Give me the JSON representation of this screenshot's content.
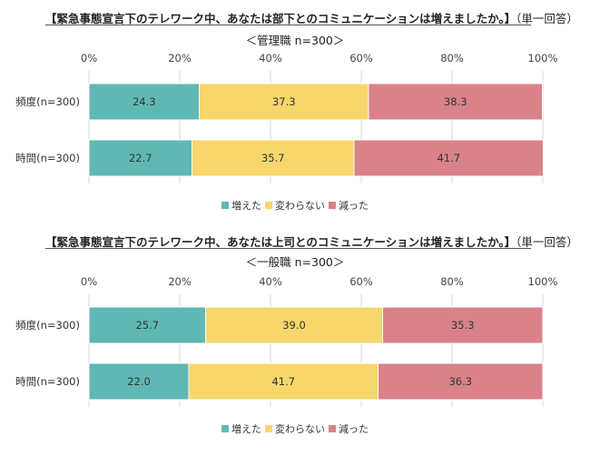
{
  "colors": {
    "increased": "#5fb8b3",
    "unchanged": "#f7d76b",
    "decreased": "#d98289"
  },
  "chart_data": [
    {
      "type": "bar",
      "orientation": "horizontal-stacked",
      "title": "【緊急事態宣言下のテレワーク中、あなたは部下とのコミュニケーションは増えましたか。】",
      "title_note": "（単一回答）",
      "subtitle": "＜管理職 n=300＞",
      "xlim": [
        0,
        100
      ],
      "ticks": [
        "0%",
        "20%",
        "40%",
        "60%",
        "80%",
        "100%"
      ],
      "categories": [
        "頻度(n=300)",
        "時間(n=300)"
      ],
      "series": [
        {
          "name": "増えた",
          "values": [
            24.3,
            22.7
          ]
        },
        {
          "name": "変わらない",
          "values": [
            37.3,
            35.7
          ]
        },
        {
          "name": "減った",
          "values": [
            38.3,
            41.7
          ]
        }
      ],
      "value_labels": [
        [
          "24.3",
          "37.3",
          "38.3"
        ],
        [
          "22.7",
          "35.7",
          "41.7"
        ]
      ],
      "legend": "bottom"
    },
    {
      "type": "bar",
      "orientation": "horizontal-stacked",
      "title": "【緊急事態宣言下のテレワーク中、あなたは上司とのコミュニケーションは増えましたか。】",
      "title_note": "（単一回答）",
      "subtitle": "＜一般職 n=300＞",
      "xlim": [
        0,
        100
      ],
      "ticks": [
        "0%",
        "20%",
        "40%",
        "60%",
        "80%",
        "100%"
      ],
      "categories": [
        "頻度(n=300)",
        "時間(n=300)"
      ],
      "series": [
        {
          "name": "増えた",
          "values": [
            25.7,
            22.0
          ]
        },
        {
          "name": "変わらない",
          "values": [
            39.0,
            41.7
          ]
        },
        {
          "name": "減った",
          "values": [
            35.3,
            36.3
          ]
        }
      ],
      "value_labels": [
        [
          "25.7",
          "39.0",
          "35.3"
        ],
        [
          "22.0",
          "41.7",
          "36.3"
        ]
      ],
      "legend": "bottom"
    }
  ]
}
